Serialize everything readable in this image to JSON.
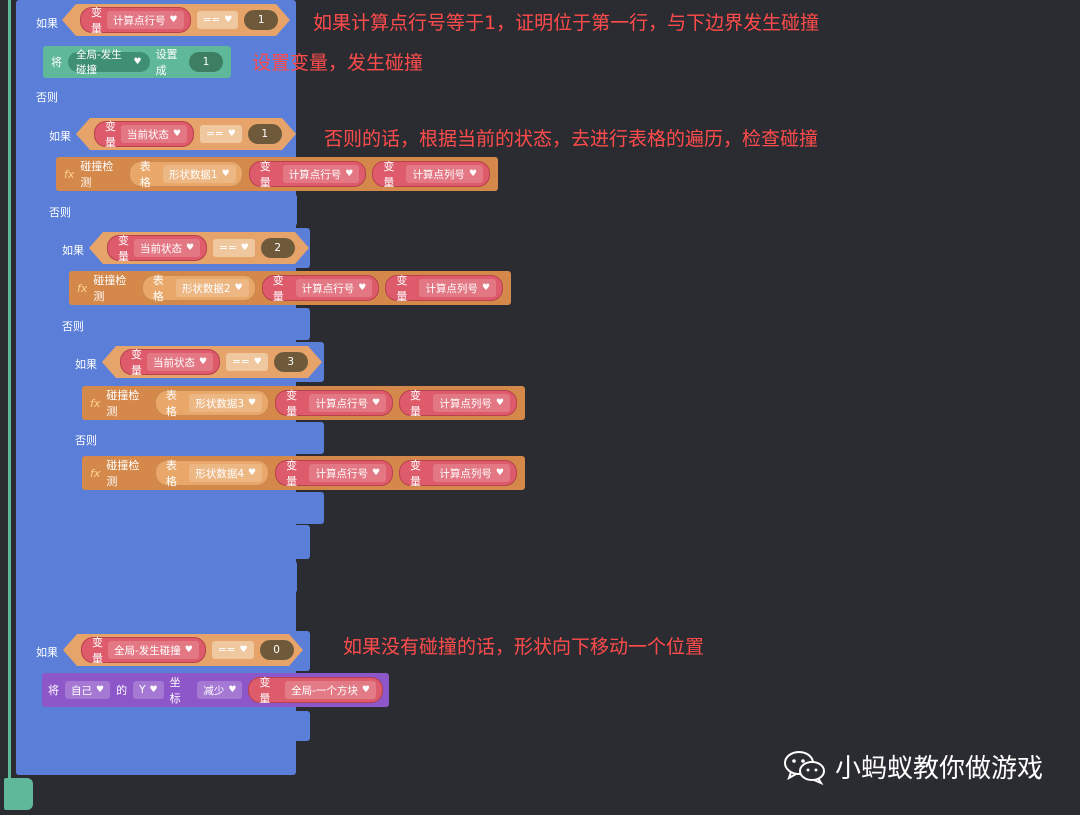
{
  "labels": {
    "if": "如果",
    "else": "否则",
    "var": "变量",
    "set": "将",
    "set_to": "设置成",
    "collision": "碰撞检测",
    "table": "表格",
    "of": "的",
    "coord": "坐标",
    "reduce": "减少",
    "op_eq": "=="
  },
  "variables": {
    "row": "计算点行号",
    "col": "计算点列号",
    "state": "当前状态",
    "global_hit": "全局-发生碰撞",
    "global_block": "全局-一个方块",
    "self": "自己",
    "axis": "Y"
  },
  "tables": [
    "形状数据1",
    "形状数据2",
    "形状数据3",
    "形状数据4"
  ],
  "values": {
    "one": "1",
    "two": "2",
    "three": "3",
    "zero": "0"
  },
  "annotations": {
    "a1": "如果计算点行号等于1，证明位于第一行，与下边界发生碰撞",
    "a2": "设置变量，发生碰撞",
    "a3": "否则的话，根据当前的状态，去进行表格的遍历，检查碰撞",
    "a4": "如果没有碰撞的话，形状向下移动一个位置"
  },
  "watermark": "小蚂蚁教你做游戏",
  "icons": {
    "dropdown": "heart-dropdown-icon",
    "fx": "fx-icon",
    "wechat": "wechat-icon"
  },
  "colors": {
    "control": "#5b7fd8",
    "operator": "#e6a36a",
    "variable": "#dd5b6a",
    "data": "#5fb89a",
    "function": "#d4884a",
    "motion": "#8e57c9",
    "annotation": "#ff4b4b"
  }
}
